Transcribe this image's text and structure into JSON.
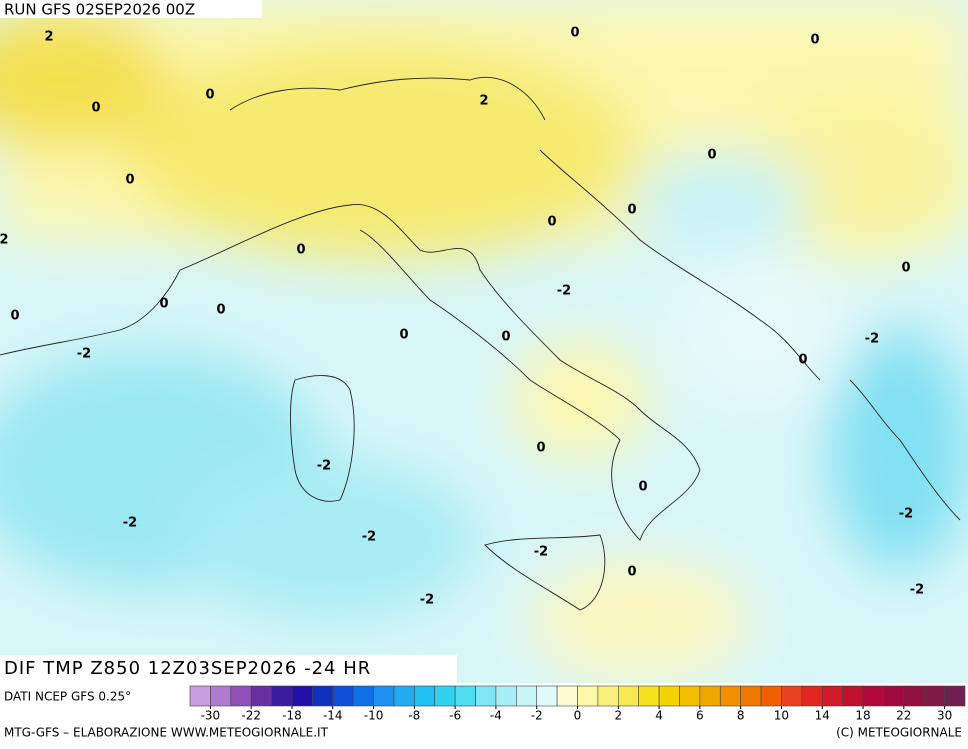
{
  "header": {
    "run": "RUN GFS 02SEP2026 00Z"
  },
  "map": {
    "contour_labels": [
      2,
      0,
      0,
      0,
      0,
      2,
      0,
      0,
      0,
      0,
      2,
      0,
      0,
      -2,
      0,
      0,
      0,
      0,
      0,
      -2,
      -2,
      0,
      0,
      -2,
      0,
      -2,
      -2,
      -2,
      -2,
      0,
      -2,
      -2
    ]
  },
  "title": "DIF TMP Z850 12Z03SEP2026 -24 HR",
  "source": "DATI NCEP GFS 0.25°",
  "colorbar": {
    "ticks": [
      -30,
      -22,
      -18,
      -14,
      -10,
      -8,
      -6,
      -4,
      -2,
      0,
      2,
      4,
      6,
      8,
      10,
      14,
      18,
      22,
      30
    ],
    "colors": [
      "#c89ee0",
      "#b07ad0",
      "#9050b8",
      "#6a2f9e",
      "#3a1c9c",
      "#2010a8",
      "#1030c0",
      "#1050d8",
      "#1070e8",
      "#1e90f0",
      "#20aaf0",
      "#20c0f0",
      "#30d0f0",
      "#50dcf0",
      "#80e6f4",
      "#a8eef6",
      "#c8f4f8",
      "#e0fafa",
      "#fcfcd0",
      "#fcf8a8",
      "#faf080",
      "#f8e850",
      "#f6e020",
      "#f4d400",
      "#f2c000",
      "#f0a800",
      "#f09000",
      "#f07800",
      "#f06000",
      "#e84020",
      "#e02820",
      "#d01828",
      "#c01030",
      "#b00838",
      "#a00840",
      "#901040",
      "#801848",
      "#702050"
    ]
  },
  "footer": {
    "left": "MTG-GFS – ELABORAZIONE WWW.METEOGIORNALE.IT",
    "right": "(C) METEOGIORNALE"
  }
}
